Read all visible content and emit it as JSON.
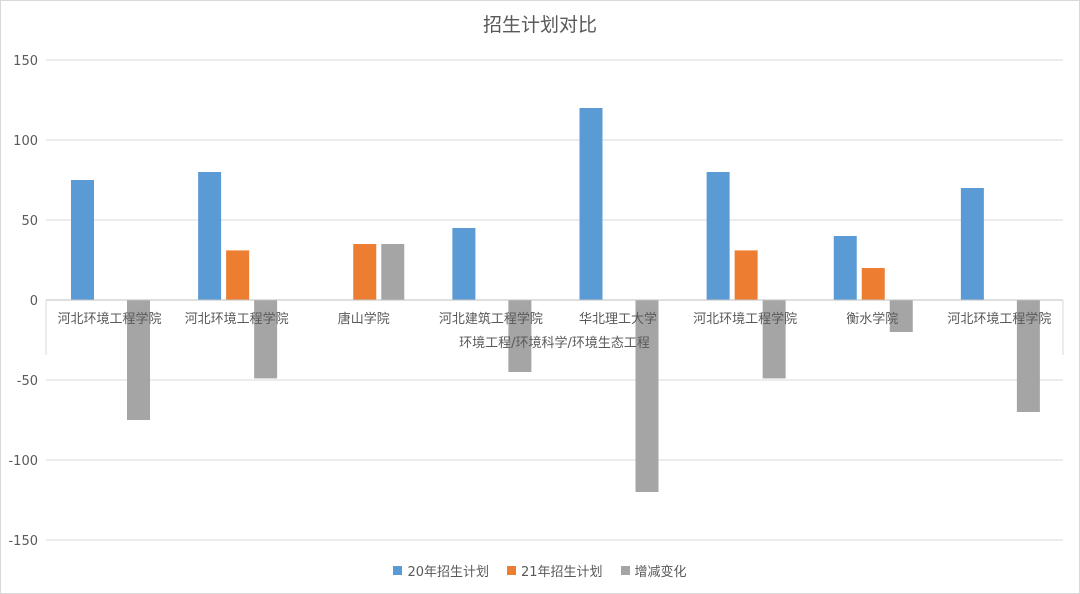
{
  "chart_data": {
    "type": "bar",
    "title": "招生计划对比",
    "axis_label": "环境工程/环境科学/环境生态工程",
    "categories": [
      "河北环境工程学院",
      "河北环境工程学院",
      "唐山学院",
      "河北建筑工程学院",
      "华北理工大学",
      "河北环境工程学院",
      "衡水学院",
      "河北环境工程学院"
    ],
    "series": [
      {
        "name": "20年招生计划",
        "color": "#5b9bd5",
        "values": [
          75,
          80,
          null,
          45,
          120,
          80,
          40,
          70
        ]
      },
      {
        "name": "21年招生计划",
        "color": "#ed7d31",
        "values": [
          null,
          31,
          35,
          null,
          null,
          31,
          20,
          null
        ]
      },
      {
        "name": "增减变化",
        "color": "#a5a5a5",
        "values": [
          -75,
          -49,
          35,
          -45,
          -120,
          -49,
          -20,
          -70
        ]
      }
    ],
    "ylim": [
      -150,
      150
    ],
    "yticks": [
      150,
      100,
      50,
      0,
      -50,
      -100,
      -150
    ],
    "grid": true,
    "legend": "bottom"
  }
}
